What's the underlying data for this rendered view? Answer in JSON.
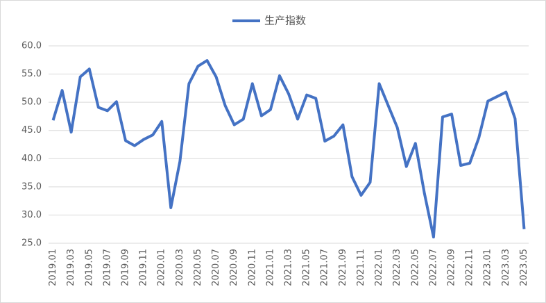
{
  "chart_data": {
    "type": "line",
    "categories": [
      "2019.01",
      null,
      "2019.03",
      null,
      "2019.05",
      null,
      "2019.07",
      null,
      "2019.09",
      null,
      "2019.11",
      null,
      "2020.01",
      null,
      "2020.03",
      null,
      "2020.05",
      null,
      "2020.07",
      null,
      "2020.09",
      null,
      "2020.11",
      null,
      "2021.01",
      null,
      "2021.03",
      null,
      "2021.05",
      null,
      "2021.07",
      null,
      "2021.09",
      null,
      "2021.11",
      null,
      "2022.01",
      null,
      "2022.03",
      null,
      "2022.05",
      null,
      "2022.07",
      null,
      "2022.09",
      null,
      "2022.11",
      null,
      "2023.01",
      null,
      "2023.03",
      null,
      "2023.05"
    ],
    "series": [
      {
        "name": "生产指数",
        "color": "#4472c4",
        "values": [
          46.8,
          52.1,
          44.7,
          54.5,
          55.9,
          49.1,
          48.5,
          50.1,
          43.2,
          42.3,
          43.4,
          44.2,
          46.6,
          31.3,
          39.5,
          53.3,
          56.4,
          57.4,
          54.5,
          49.4,
          46.0,
          47.0,
          53.3,
          47.6,
          48.7,
          54.7,
          51.5,
          47.0,
          51.3,
          50.7,
          43.1,
          44.0,
          46.0,
          36.8,
          33.5,
          35.8,
          53.3,
          49.4,
          45.5,
          38.6,
          42.7,
          33.8,
          26.1,
          47.4,
          47.9,
          38.8,
          39.2,
          43.7,
          50.2,
          51.0,
          51.8,
          47.1,
          27.5
        ]
      }
    ],
    "ylim": [
      25,
      60
    ],
    "yticks": [
      {
        "value": 25,
        "label": "25.0"
      },
      {
        "value": 30,
        "label": "30.0"
      },
      {
        "value": 35,
        "label": "35.0"
      },
      {
        "value": 40,
        "label": "40.0"
      },
      {
        "value": 45,
        "label": "45.0"
      },
      {
        "value": 50,
        "label": "50.0"
      },
      {
        "value": 55,
        "label": "55.0"
      },
      {
        "value": 60,
        "label": "60.0"
      }
    ],
    "grid": true,
    "legend": "top"
  }
}
